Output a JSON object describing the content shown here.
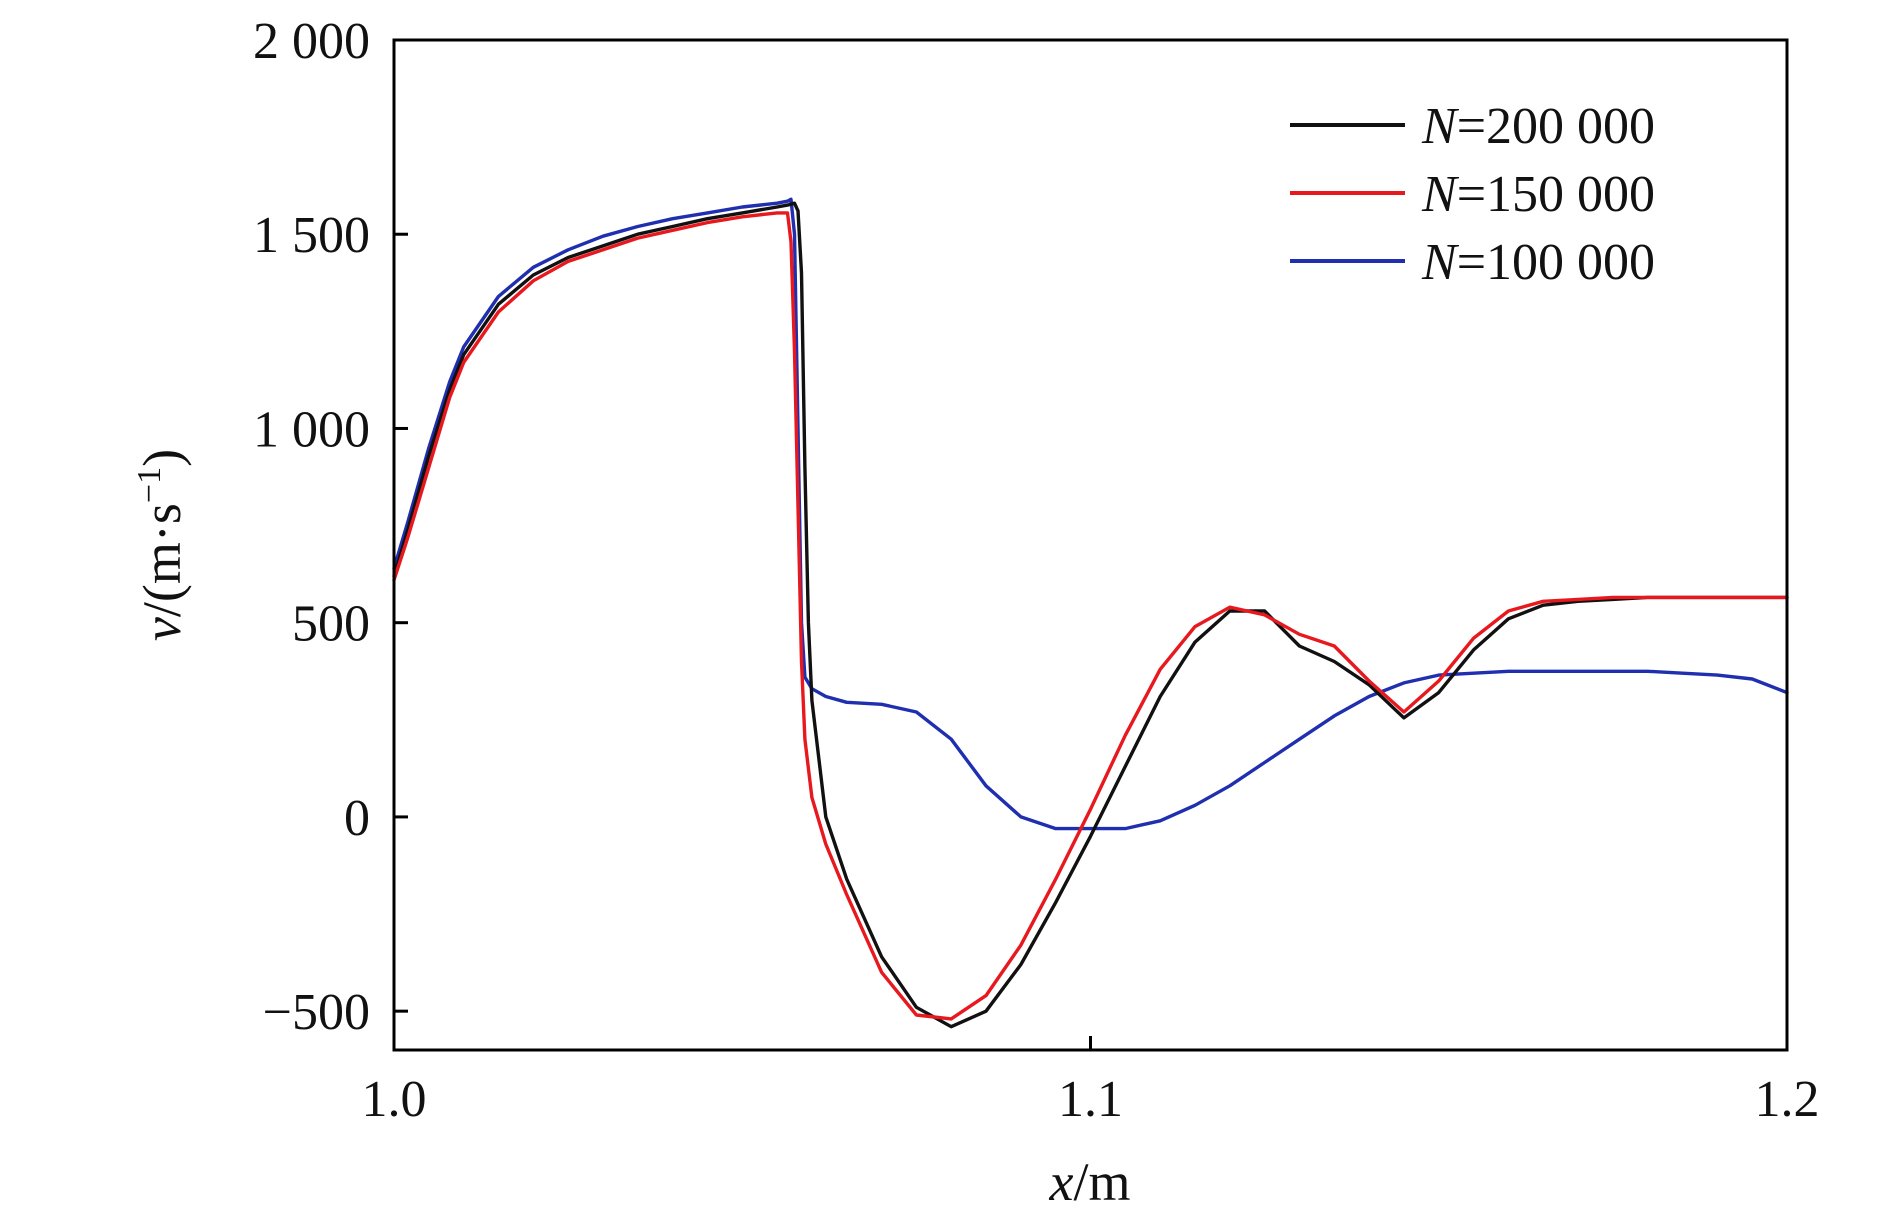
{
  "chart_data": {
    "type": "line",
    "title": "",
    "xlabel_var": "x",
    "xlabel_unit": "/m",
    "ylabel_var": "v",
    "ylabel_unit_pre": "/(m·s",
    "ylabel_sup": "−1",
    "ylabel_unit_post": ")",
    "xlim": [
      1.0,
      1.2
    ],
    "ylim": [
      -600,
      2000
    ],
    "xticks": [
      1.0,
      1.1,
      1.2
    ],
    "xtick_labels": [
      "1.0",
      "1.1",
      "1.2"
    ],
    "yticks": [
      -500,
      0,
      500,
      1000,
      1500,
      2000
    ],
    "ytick_labels": [
      "−500",
      "0",
      "500",
      "1 000",
      "1 500",
      "2 000"
    ],
    "grid": false,
    "legend_position": "top-right",
    "series": [
      {
        "name_var": "N",
        "name_value": "=200 000",
        "color": "#111111",
        "x": [
          1.0,
          1.002,
          1.005,
          1.008,
          1.01,
          1.015,
          1.02,
          1.025,
          1.03,
          1.035,
          1.04,
          1.045,
          1.05,
          1.055,
          1.0565,
          1.0575,
          1.058,
          1.0585,
          1.059,
          1.0595,
          1.06,
          1.062,
          1.065,
          1.07,
          1.075,
          1.08,
          1.085,
          1.09,
          1.095,
          1.1,
          1.105,
          1.11,
          1.115,
          1.12,
          1.125,
          1.13,
          1.135,
          1.14,
          1.145,
          1.15,
          1.155,
          1.16,
          1.165,
          1.17,
          1.175,
          1.18,
          1.185,
          1.19,
          1.195,
          1.2
        ],
        "y": [
          620,
          740,
          930,
          1100,
          1190,
          1320,
          1395,
          1440,
          1470,
          1500,
          1520,
          1540,
          1555,
          1570,
          1575,
          1580,
          1560,
          1400,
          900,
          500,
          300,
          0,
          -160,
          -360,
          -490,
          -540,
          -500,
          -380,
          -220,
          -50,
          130,
          310,
          450,
          530,
          530,
          440,
          400,
          340,
          255,
          320,
          430,
          510,
          545,
          555,
          560,
          565,
          565,
          565,
          565,
          565
        ]
      },
      {
        "name_var": "N",
        "name_value": "=150 000",
        "color": "#e8191e",
        "x": [
          1.0,
          1.002,
          1.005,
          1.008,
          1.01,
          1.015,
          1.02,
          1.025,
          1.03,
          1.035,
          1.04,
          1.045,
          1.05,
          1.055,
          1.0565,
          1.057,
          1.0575,
          1.058,
          1.0585,
          1.059,
          1.06,
          1.062,
          1.065,
          1.07,
          1.075,
          1.08,
          1.085,
          1.09,
          1.095,
          1.1,
          1.105,
          1.11,
          1.115,
          1.12,
          1.125,
          1.13,
          1.135,
          1.14,
          1.145,
          1.15,
          1.155,
          1.16,
          1.165,
          1.17,
          1.175,
          1.18,
          1.185,
          1.19,
          1.195,
          1.2
        ],
        "y": [
          610,
          720,
          900,
          1080,
          1170,
          1300,
          1380,
          1430,
          1460,
          1490,
          1510,
          1530,
          1545,
          1555,
          1555,
          1480,
          1200,
          800,
          400,
          200,
          50,
          -70,
          -200,
          -400,
          -510,
          -520,
          -460,
          -330,
          -160,
          20,
          210,
          380,
          490,
          540,
          520,
          470,
          440,
          350,
          270,
          350,
          460,
          530,
          555,
          560,
          565,
          565,
          565,
          565,
          565,
          565
        ]
      },
      {
        "name_var": "N",
        "name_value": "=100 000",
        "color": "#1f2fb0",
        "x": [
          1.0,
          1.002,
          1.005,
          1.008,
          1.01,
          1.015,
          1.02,
          1.025,
          1.03,
          1.035,
          1.04,
          1.045,
          1.05,
          1.055,
          1.0565,
          1.057,
          1.0575,
          1.058,
          1.0585,
          1.059,
          1.06,
          1.062,
          1.065,
          1.07,
          1.075,
          1.08,
          1.085,
          1.09,
          1.095,
          1.1,
          1.105,
          1.11,
          1.115,
          1.12,
          1.125,
          1.13,
          1.135,
          1.14,
          1.145,
          1.15,
          1.155,
          1.16,
          1.165,
          1.17,
          1.175,
          1.18,
          1.185,
          1.19,
          1.195,
          1.2
        ],
        "y": [
          640,
          760,
          950,
          1120,
          1210,
          1340,
          1415,
          1460,
          1495,
          1520,
          1540,
          1555,
          1570,
          1580,
          1585,
          1590,
          1500,
          1000,
          500,
          360,
          330,
          310,
          295,
          290,
          270,
          200,
          80,
          0,
          -30,
          -30,
          -30,
          -10,
          30,
          80,
          140,
          200,
          260,
          310,
          345,
          365,
          370,
          375,
          375,
          375,
          375,
          375,
          370,
          365,
          355,
          320
        ]
      }
    ]
  }
}
